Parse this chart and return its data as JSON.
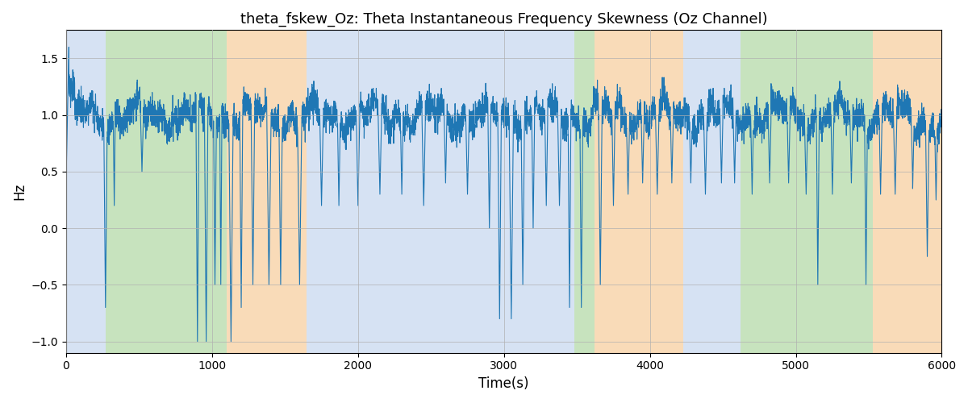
{
  "title": "theta_fskew_Oz: Theta Instantaneous Frequency Skewness (Oz Channel)",
  "xlabel": "Time(s)",
  "ylabel": "Hz",
  "xlim": [
    0,
    6000
  ],
  "ylim": [
    -1.1,
    1.75
  ],
  "line_color": "#1f77b4",
  "line_width": 0.8,
  "background_regions": [
    {
      "xmin": 0,
      "xmax": 270,
      "color": "#aec6e8",
      "alpha": 0.5
    },
    {
      "xmin": 270,
      "xmax": 1100,
      "color": "#90c97e",
      "alpha": 0.5
    },
    {
      "xmin": 1100,
      "xmax": 1650,
      "color": "#f5c48a",
      "alpha": 0.6
    },
    {
      "xmin": 1650,
      "xmax": 3480,
      "color": "#aec6e8",
      "alpha": 0.5
    },
    {
      "xmin": 3480,
      "xmax": 3620,
      "color": "#90c97e",
      "alpha": 0.5
    },
    {
      "xmin": 3620,
      "xmax": 4230,
      "color": "#f5c48a",
      "alpha": 0.6
    },
    {
      "xmin": 4230,
      "xmax": 4620,
      "color": "#aec6e8",
      "alpha": 0.5
    },
    {
      "xmin": 4620,
      "xmax": 5530,
      "color": "#90c97e",
      "alpha": 0.5
    },
    {
      "xmin": 5530,
      "xmax": 6000,
      "color": "#f5c48a",
      "alpha": 0.6
    }
  ],
  "yticks": [
    -1.0,
    -0.5,
    0.0,
    0.5,
    1.0,
    1.5
  ],
  "xticks": [
    0,
    1000,
    2000,
    3000,
    4000,
    5000,
    6000
  ],
  "grid_color": "#b0b0b0",
  "grid_alpha": 0.7
}
